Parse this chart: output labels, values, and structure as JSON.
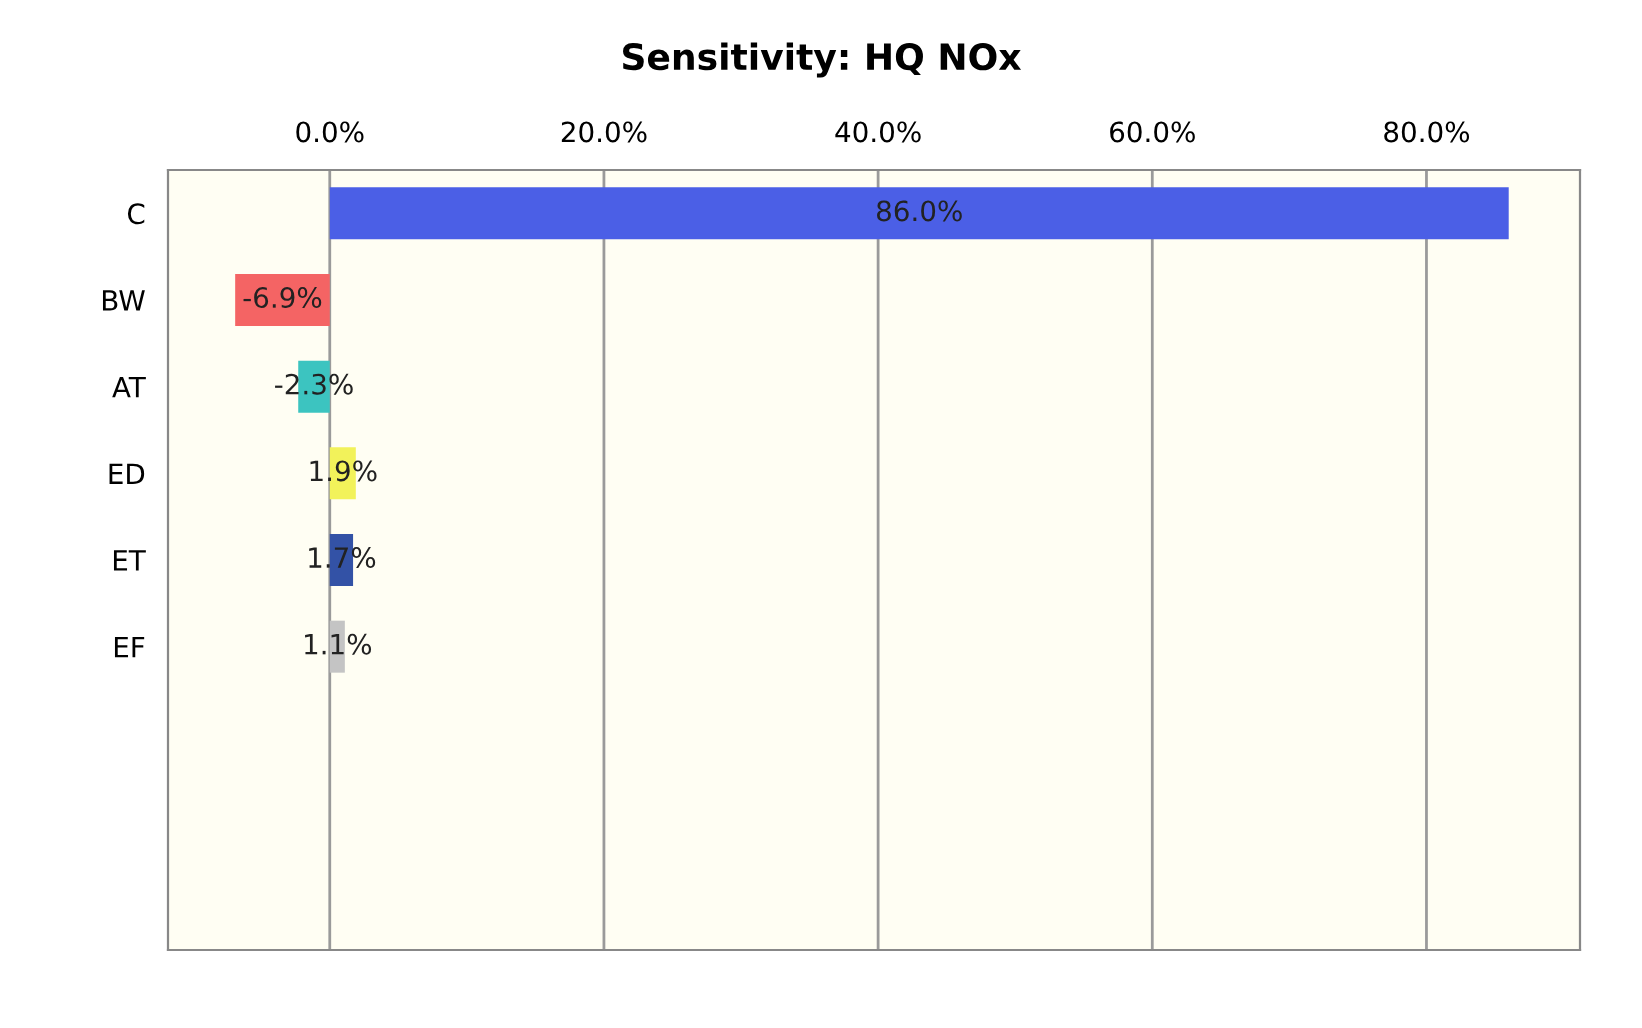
{
  "chart_data": {
    "type": "bar",
    "orientation": "horizontal",
    "title": "Sensitivity: HQ NOx",
    "categories": [
      "C",
      "BW",
      "AT",
      "ED",
      "ET",
      "EF",
      null,
      null,
      null
    ],
    "values": [
      86.0,
      -6.9,
      -2.3,
      1.9,
      1.7,
      1.1,
      null,
      null,
      null
    ],
    "colors": [
      "#4b5fe6",
      "#f46464",
      "#3cc4c0",
      "#f2f25a",
      "#3352a6",
      "#c4c4c4",
      "#cccccc",
      "#cccccc",
      "#cccccc"
    ],
    "value_labels": [
      "86.0%",
      "-6.9%",
      "-2.3%",
      "1.9%",
      "1.7%",
      "1.1%",
      null,
      null,
      null
    ],
    "xlim": [
      -11.8,
      91.2
    ],
    "xticks": [
      {
        "value": 0,
        "label": "0.0%"
      },
      {
        "value": 20,
        "label": "20.0%"
      },
      {
        "value": 40,
        "label": "40.0%"
      },
      {
        "value": 60,
        "label": "60.0%"
      },
      {
        "value": 80,
        "label": "80.0%"
      }
    ],
    "grid": "x"
  }
}
